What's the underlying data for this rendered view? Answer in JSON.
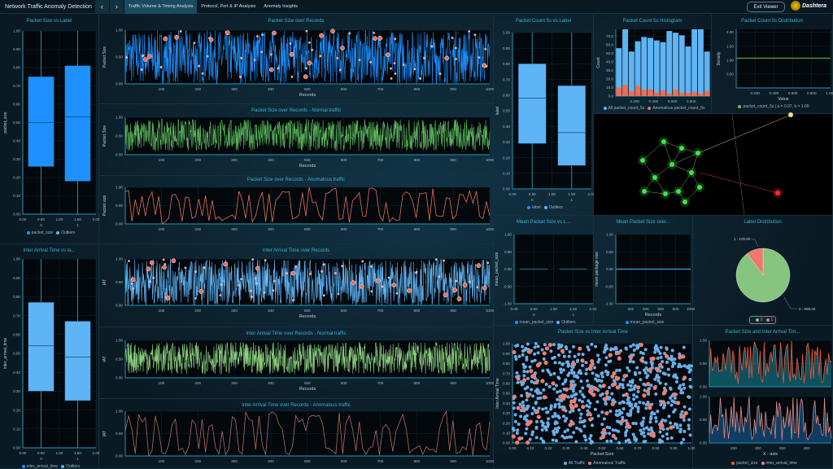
{
  "header": {
    "title": "Network Traffic Anomaly Detection",
    "tabs": [
      "Traffic Volume & Timing Analysis",
      "Protocol, Port & IP Analysis",
      "Anomaly Insights"
    ],
    "active_tab": 0,
    "exit_label": "Exit Viewer",
    "logo_text": "Dashtera",
    "prev_icon": "chevron-left",
    "next_icon": "chevron-right"
  },
  "colors": {
    "blue": "#1e90ff",
    "light_blue": "#5fb4f5",
    "green": "#5cb85c",
    "red": "#e8705a",
    "title": "#3ab3d3",
    "axis": "#1f7f98"
  },
  "legends": {
    "packet_size": "packet_size",
    "outliers": "Outliers",
    "inter_arrival_time": "inter_arrival_time",
    "label": "label",
    "all_pc": "All  packet_count_5s",
    "anom_pc": "Anomalous  packet_count_5s",
    "dist": "packet_count_5s | a = 0.07, b = 1.00",
    "mean_packet_size": "mean_packet_size",
    "pie0": "0",
    "pie1": "1",
    "all_traffic": "All Traffic",
    "anomalous_traffic": "Anomalous Traffic",
    "inter_arrival_time2": "inter_arrival_time"
  },
  "chart_data": [
    {
      "id": "ps_box",
      "type": "box",
      "title": "Packet Size vs Label",
      "ylabel": "packet_size",
      "xlim": [
        0,
        2
      ],
      "ylim": [
        0,
        1
      ],
      "xticks": [
        "0.00",
        "0.50",
        "1.00",
        "1.50",
        "2.00"
      ],
      "categories": [
        "0",
        "1"
      ],
      "boxes": [
        {
          "q1": 0.26,
          "median": 0.5,
          "q3": 0.75,
          "min": 0,
          "max": 1
        },
        {
          "q1": 0.18,
          "median": 0.53,
          "q3": 0.81,
          "min": 0,
          "max": 1
        }
      ],
      "yticks": [
        "0.00",
        "0.10",
        "0.20",
        "0.30",
        "0.40",
        "0.50",
        "0.60",
        "0.70",
        "0.80",
        "0.90",
        "1.00"
      ]
    },
    {
      "id": "iat_box",
      "type": "box",
      "title": "Inter Arrival Time vs la...",
      "ylabel": "inter_arrival_time",
      "xlim": [
        0,
        2
      ],
      "ylim": [
        0,
        1
      ],
      "xticks": [
        "0.00",
        "0.50",
        "1.00",
        "1.50",
        "2.00"
      ],
      "categories": [
        "0",
        "1"
      ],
      "boxes": [
        {
          "q1": 0.3,
          "median": 0.54,
          "q3": 0.77,
          "min": 0,
          "max": 1
        },
        {
          "q1": 0.25,
          "median": 0.48,
          "q3": 0.67,
          "min": 0,
          "max": 1
        }
      ],
      "yticks": [
        "0.00",
        "0.10",
        "0.20",
        "0.30",
        "0.40",
        "0.50",
        "0.60",
        "0.70",
        "0.80",
        "0.90",
        "1.00"
      ]
    },
    {
      "id": "ps_line",
      "type": "line",
      "title": "Packet Size over Records",
      "xlabel": "Records",
      "ylabel": "Packet Size",
      "xlim": [
        1,
        1000
      ],
      "ylim": [
        0,
        1
      ],
      "xticks": [
        "100",
        "200",
        "300",
        "400",
        "500",
        "600",
        "700",
        "800",
        "900",
        "1000"
      ],
      "yticks": [
        "0.00",
        "0.50",
        "1.00"
      ],
      "series_color": "#1e90ff",
      "outlier_markers": true
    },
    {
      "id": "ps_normal",
      "type": "line",
      "title": "Packet Size over Records - Normal traffic",
      "xlabel": "Records",
      "ylabel": "Packet Size",
      "xlim": [
        1,
        1000
      ],
      "ylim": [
        0,
        1
      ],
      "xticks": [
        "100",
        "200",
        "300",
        "400",
        "500",
        "600",
        "700",
        "800",
        "900",
        "1000"
      ],
      "yticks": [
        "0.00",
        "0.50",
        "1.00"
      ],
      "series_color": "#5cb85c"
    },
    {
      "id": "ps_anom",
      "type": "line",
      "title": "Packet Size over Records - Anomalous traffic",
      "xlabel": "",
      "ylabel": "Packet size",
      "xlim": [
        1,
        1000
      ],
      "ylim": [
        0,
        1
      ],
      "xticks": [
        "100",
        "200",
        "300",
        "400",
        "500",
        "600",
        "700",
        "800",
        "900",
        "1000"
      ],
      "yticks": [
        "0.00",
        "0.50",
        "1.00"
      ],
      "series_color": "#e8705a"
    },
    {
      "id": "iat_line",
      "type": "line",
      "title": "Inter Arrival Time over Records",
      "xlabel": "Records",
      "ylabel": "IAT",
      "xlim": [
        1,
        1000
      ],
      "ylim": [
        0,
        1
      ],
      "xticks": [
        "100",
        "200",
        "300",
        "400",
        "500",
        "600",
        "700",
        "800",
        "900",
        "1000"
      ],
      "yticks": [
        "0.00",
        "0.50",
        "1.00"
      ],
      "series_color": "#5fb4f5",
      "outlier_markers": true
    },
    {
      "id": "iat_normal",
      "type": "line",
      "title": "Inter Arrival Time over Records - Normal traffic",
      "xlabel": "Records",
      "ylabel": "IAT",
      "xlim": [
        1,
        1000
      ],
      "ylim": [
        0,
        1
      ],
      "xticks": [
        "100",
        "200",
        "300",
        "400",
        "500",
        "600",
        "700",
        "800",
        "900",
        "1000"
      ],
      "yticks": [
        "0.00",
        "0.50",
        "1.00"
      ],
      "series_color": "#8ccf7e"
    },
    {
      "id": "iat_anom",
      "type": "line",
      "title": "Inter Arrival Time over Records - Anomalous traffic",
      "xlabel": "",
      "ylabel": "IAT",
      "xlim": [
        1,
        1000
      ],
      "ylim": [
        0,
        1
      ],
      "xticks": [
        "100",
        "200",
        "300",
        "400",
        "500",
        "600",
        "700",
        "800",
        "900",
        "1000"
      ],
      "yticks": [
        "0.00",
        "0.50",
        "1.00"
      ],
      "series_color": "#b06a62"
    },
    {
      "id": "pc_box",
      "type": "box",
      "title": "Packet Count 5s vs Label",
      "ylabel": "label",
      "xlim": [
        0,
        2
      ],
      "ylim": [
        0,
        1
      ],
      "xticks": [
        "0.00",
        "0.50",
        "1.00",
        "1.50",
        "2.00"
      ],
      "categories": [
        "0",
        "1"
      ],
      "boxes": [
        {
          "q1": 0.29,
          "median": 0.58,
          "q3": 0.8,
          "min": 0,
          "max": 1
        },
        {
          "q1": 0.15,
          "median": 0.36,
          "q3": 0.66,
          "min": 0,
          "max": 1
        }
      ],
      "yticks": [
        "0.00",
        "0.10",
        "0.20",
        "0.30",
        "0.40",
        "0.50",
        "0.60",
        "0.70",
        "0.80",
        "0.90",
        "1.00"
      ]
    },
    {
      "id": "pc_hist",
      "type": "bar",
      "title": "Packet Count 5s Histogram",
      "ylabel": "Count",
      "xlim": [
        0,
        1
      ],
      "ylim": [
        0,
        78
      ],
      "xticks": [
        "0.200",
        "0.400",
        "0.600",
        "0.800"
      ],
      "yticks": [
        "0.0",
        "10.0",
        "20.0",
        "30.0",
        "40.0",
        "50.0",
        "60.0",
        "70.0"
      ],
      "series": [
        {
          "name": "All  packet_count_5s",
          "values": [
            56,
            78,
            52,
            64,
            69,
            68,
            65,
            63,
            76,
            74,
            71,
            58,
            78,
            78,
            52
          ]
        },
        {
          "name": "Anomalous  packet_count_5s",
          "values": [
            10,
            13,
            6,
            12,
            7,
            8,
            4,
            7,
            3,
            8,
            4,
            4,
            5,
            3,
            6
          ]
        }
      ]
    },
    {
      "id": "pc_dist",
      "type": "line",
      "title": "Packet Count 5s Distribution",
      "xlabel": "Value",
      "ylabel": "Density",
      "xlim": [
        0,
        1
      ],
      "ylim": [
        0,
        2.1
      ],
      "xticks": [
        "0.200",
        "0.400",
        "0.600",
        "0.800",
        "1.000"
      ],
      "yticks": [
        "0.50",
        "1.00",
        "1.50",
        "2.00"
      ],
      "density": 1.07
    },
    {
      "id": "mps_box",
      "type": "box",
      "title": "Mean Packet Size vs L...",
      "ylabel": "mean_packet_size",
      "xlim": [
        0,
        2
      ],
      "ylim": [
        -1,
        1
      ],
      "xticks": [
        "0.00",
        "0.50",
        "1.00",
        "1.50",
        "2.00"
      ],
      "categories": [
        "0",
        "1"
      ],
      "boxes": [
        {
          "q1": 0,
          "median": 0,
          "q3": 0,
          "min": 0,
          "max": 0
        },
        {
          "q1": 0,
          "median": 0,
          "q3": 0,
          "min": 0,
          "max": 0
        }
      ],
      "yticks": [
        "-1.00",
        "-0.50",
        "0.00",
        "0.50",
        "1.00"
      ]
    },
    {
      "id": "mps_line",
      "type": "line",
      "title": "Mean Packet Size over...",
      "xlabel": "Records",
      "ylabel": "mean package size",
      "xlim": [
        1,
        1000
      ],
      "ylim": [
        -1,
        1
      ],
      "xticks": [
        "200",
        "400",
        "600",
        "800",
        "1000"
      ],
      "yticks": [
        "-1.00",
        "-0.50",
        "0.00",
        "0.50",
        "1.00"
      ],
      "constant": 0
    },
    {
      "id": "label_pie",
      "type": "pie",
      "title": "Label Distribution",
      "slices": [
        {
          "label": "0",
          "value": 900,
          "text": "0 : 900.00",
          "color": "#85c57f"
        },
        {
          "label": "1",
          "value": 100,
          "text": "1 : 100.00",
          "color": "#ef7a6c"
        }
      ]
    },
    {
      "id": "scatter",
      "type": "scatter",
      "title": "Packet Size vs Inter Arrival Time",
      "xlabel": "Packet Size",
      "ylabel": "Inter Arrival Time",
      "xlim": [
        0,
        1
      ],
      "ylim": [
        0,
        1
      ],
      "xticks": [
        "0.00",
        "0.10",
        "0.20",
        "0.30",
        "0.40",
        "0.50",
        "0.60",
        "0.70",
        "0.80",
        "0.90",
        "1.00"
      ],
      "yticks": [
        "0.00",
        "0.10",
        "0.20",
        "0.30",
        "0.40",
        "0.50",
        "0.60",
        "0.70",
        "0.80",
        "0.90",
        "1.00"
      ]
    },
    {
      "id": "ps_iat",
      "type": "area",
      "title": "Packet Size and Inter Arrival Tim...",
      "xlabel": "X - axis",
      "xlim": [
        1,
        1000
      ],
      "ylim": [
        0,
        1
      ],
      "xticks": [
        "200",
        "400",
        "600",
        "800"
      ],
      "yticks": [
        "0.00",
        "0.50",
        "1.00"
      ]
    }
  ]
}
